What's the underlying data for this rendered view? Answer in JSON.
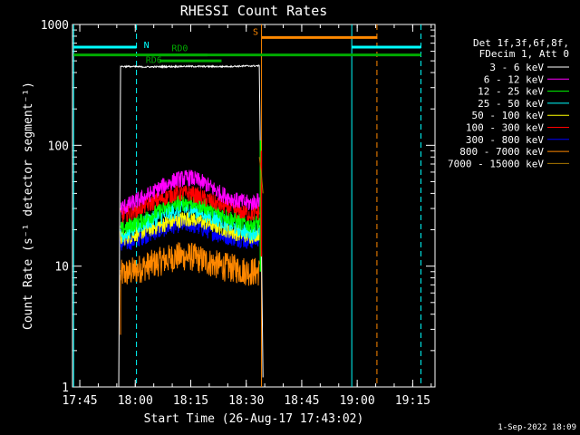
{
  "chart_data": {
    "type": "line",
    "title": "RHESSI Count Rates",
    "xlabel": "Start Time (26-Aug-17 17:43:02)",
    "ylabel": "Count Rate (s⁻¹ detector segment⁻¹)",
    "x_unit": "minutes since 17:43:02",
    "xlim": [
      0,
      98
    ],
    "ylim": [
      1,
      1000
    ],
    "y_scale": "log",
    "grid": false,
    "legend_position": "right",
    "x_tick_labels": [
      "17:45",
      "18:00",
      "18:15",
      "18:30",
      "18:45",
      "19:00",
      "19:15"
    ],
    "x_tick_values": [
      1.97,
      16.97,
      31.97,
      46.97,
      61.97,
      76.97,
      91.97
    ],
    "y_tick_labels": [
      "1",
      "10",
      "100",
      "1000"
    ],
    "y_tick_values": [
      1,
      10,
      100,
      1000
    ],
    "legend_header": [
      "Det 1f,3f,6f,8f,",
      "FDecim 1, Att 0"
    ],
    "timestamp": "1-Sep-2022 18:09",
    "series": [
      {
        "name": "3 - 6 keV",
        "color": "#ffffff",
        "x": [
          12.5,
          13,
          20,
          30,
          40,
          46,
          50.5,
          51.5
        ],
        "y": [
          1,
          450,
          445,
          450,
          448,
          452,
          455,
          1.2
        ]
      },
      {
        "name": "6 - 12 keV",
        "color": "#ff00ff",
        "x": [
          13,
          16,
          20,
          24,
          28,
          32,
          36,
          40,
          44,
          48,
          50.5
        ],
        "y": [
          30,
          33,
          38,
          45,
          52,
          54,
          48,
          40,
          35,
          33,
          35
        ]
      },
      {
        "name": "12 - 25 keV",
        "color": "#00ff00",
        "x": [
          13,
          16,
          20,
          24,
          28,
          32,
          36,
          40,
          44,
          48,
          50.5
        ],
        "y": [
          20,
          22,
          25,
          29,
          33,
          34,
          31,
          27,
          24,
          22,
          23
        ]
      },
      {
        "name": "25 - 50 keV",
        "color": "#00ffff",
        "x": [
          13,
          16,
          20,
          24,
          28,
          32,
          36,
          40,
          44,
          48,
          50.5
        ],
        "y": [
          18,
          20,
          23,
          26,
          29,
          30,
          27,
          24,
          21,
          19,
          20
        ]
      },
      {
        "name": "50 - 100 keV",
        "color": "#ffff00",
        "x": [
          13,
          16,
          20,
          24,
          28,
          32,
          36,
          40,
          44,
          48,
          50.5
        ],
        "y": [
          17,
          18,
          20,
          22,
          24,
          25,
          23,
          21,
          19,
          18,
          19
        ]
      },
      {
        "name": "100 - 300 keV",
        "color": "#ff0000",
        "x": [
          13,
          16,
          20,
          24,
          28,
          32,
          36,
          40,
          44,
          48,
          50.5
        ],
        "y": [
          26,
          28,
          32,
          36,
          40,
          40,
          36,
          32,
          29,
          27,
          28
        ]
      },
      {
        "name": "300 - 800 keV",
        "color": "#0000ff",
        "x": [
          13,
          16,
          20,
          24,
          28,
          32,
          36,
          40,
          44,
          48,
          50.5
        ],
        "y": [
          15,
          16,
          18,
          20,
          22,
          22,
          20,
          18,
          17,
          16,
          17
        ]
      },
      {
        "name": "800 - 7000 keV",
        "color": "#ff8800",
        "x": [
          13,
          16,
          20,
          24,
          28,
          32,
          36,
          40,
          44,
          48,
          50.5
        ],
        "y": [
          8.5,
          9,
          10,
          11,
          12,
          12,
          11,
          10,
          9.5,
          9,
          9
        ]
      },
      {
        "name": "7000 - 15000 keV",
        "color": "#aa7700",
        "x": [
          50.5,
          51,
          51.5
        ],
        "y": [
          80,
          60,
          40
        ]
      }
    ],
    "markers": {
      "vertical_lines": [
        {
          "x": 0.3,
          "color": "#00ffff",
          "style": "solid"
        },
        {
          "x": 17.3,
          "color": "#00ffff",
          "style": "dashed"
        },
        {
          "x": 51.1,
          "color": "#ff8800",
          "style": "solid"
        },
        {
          "x": 75.5,
          "color": "#00ffff",
          "style": "solid"
        },
        {
          "x": 82.3,
          "color": "#ff8800",
          "style": "dashed"
        },
        {
          "x": 94.2,
          "color": "#00ffff",
          "style": "dashed"
        }
      ],
      "bars": [
        {
          "label": "N",
          "color": "#00ffff",
          "segments": [
            [
              0.3,
              17.3
            ],
            [
              75.5,
              94.2
            ]
          ],
          "y": 650
        },
        {
          "label": "S",
          "color": "#ff8800",
          "segments": [
            [
              51.1,
              82.3
            ]
          ],
          "y": 780
        },
        {
          "label": "",
          "color": "#00aa00",
          "segments": [
            [
              0.3,
              94.2
            ]
          ],
          "y": 560
        },
        {
          "label": "RD6",
          "color": "#00aa00",
          "segments": [
            [
              23.5,
              40.3
            ]
          ],
          "y": 500
        },
        {
          "label": "RD0",
          "color": "#00aa00",
          "segments": [
            [
              23.5,
              36.5
            ]
          ],
          "y": 560
        }
      ],
      "bar_label_positions": {
        "N": [
          20,
          640
        ],
        "S": [
          49.5,
          820
        ],
        "RD6": [
          22,
          480
        ],
        "RD0": [
          29,
          600
        ]
      }
    }
  }
}
